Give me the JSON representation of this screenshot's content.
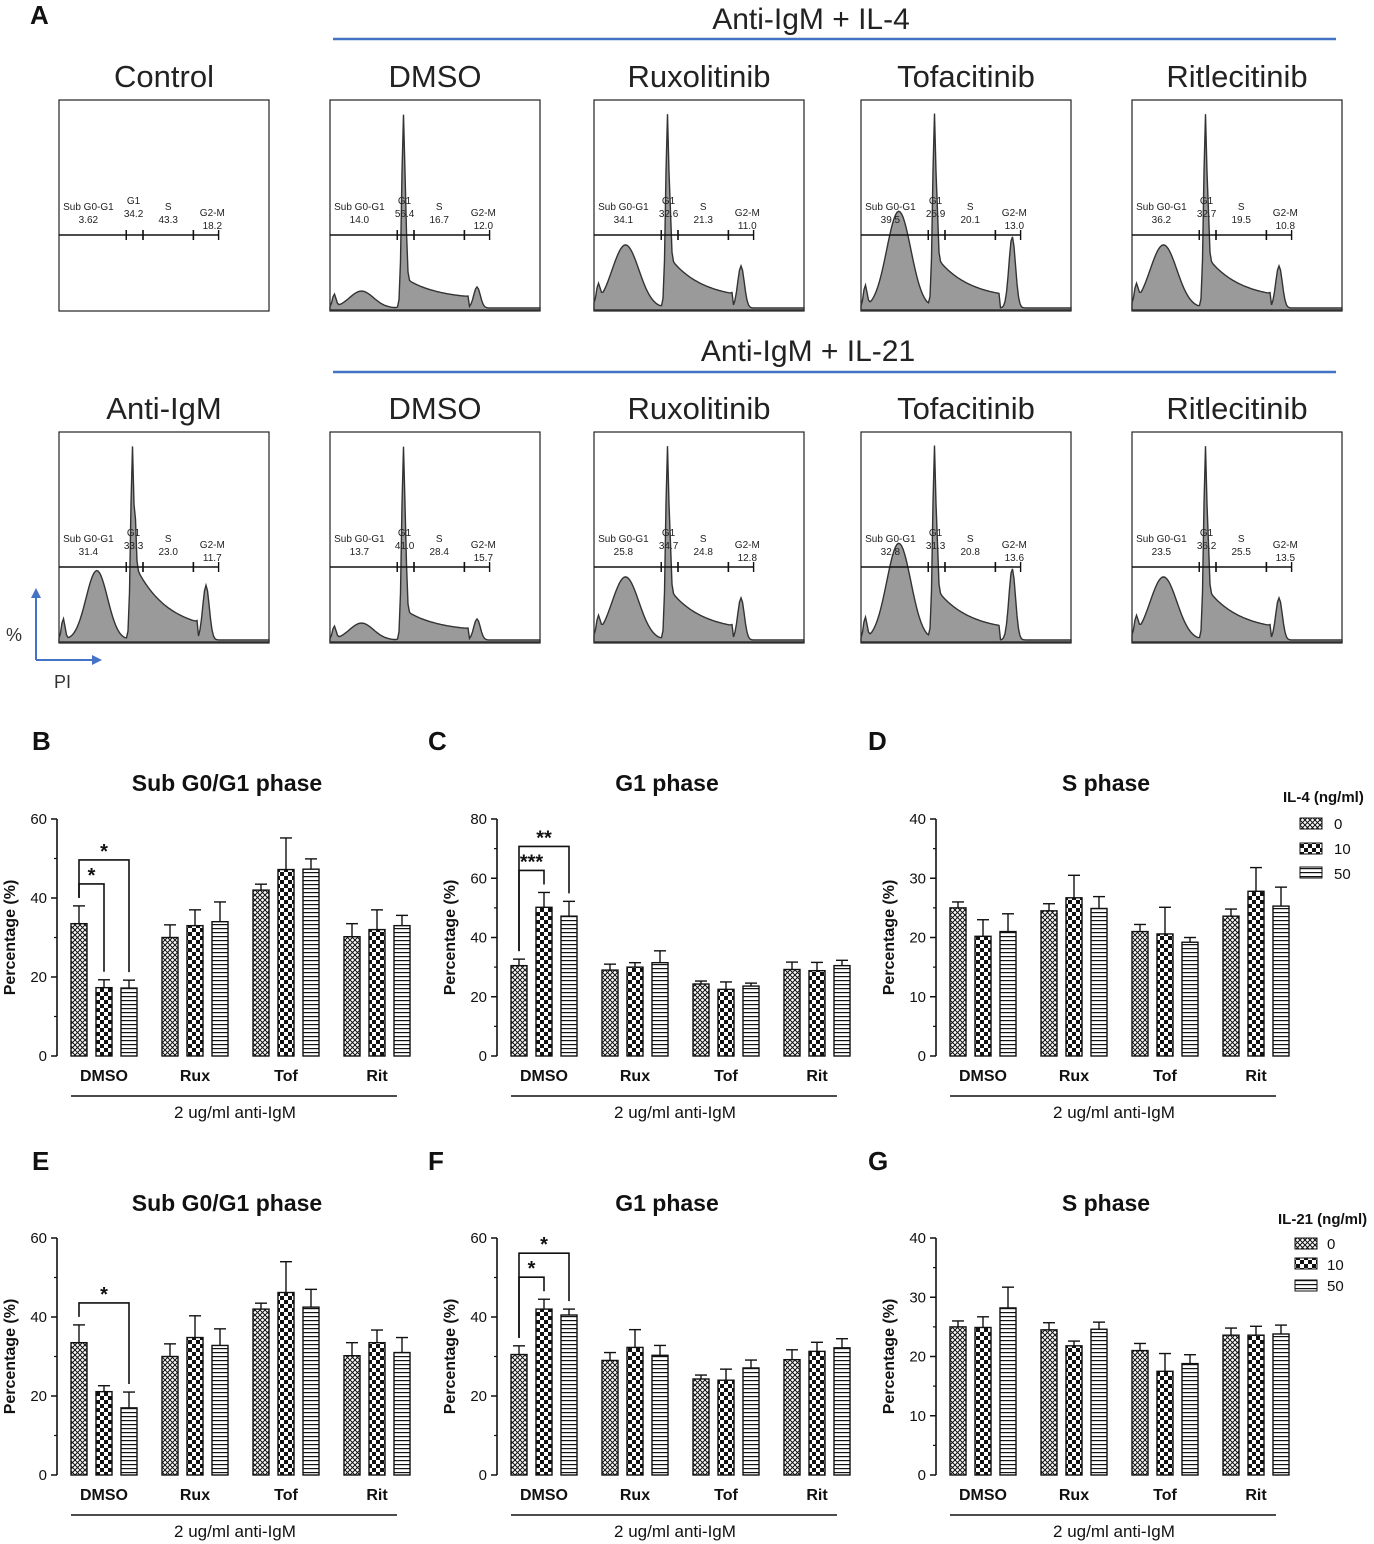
{
  "panel_a": {
    "letter": "A",
    "group_il4_title": "Anti-IgM + IL-4",
    "group_il21_title": "Anti-IgM + IL-21",
    "axis_y_note": "%",
    "axis_x_note": "PI",
    "gate_names": [
      "Sub G0-G1",
      "G1",
      "S",
      "G2-M"
    ],
    "rows": [
      [
        {
          "title": "Control",
          "values": [
            "3.62",
            "34.2",
            "43.3",
            "18.2"
          ],
          "pattern": "control"
        },
        {
          "title": "DMSO",
          "values": [
            "14.0",
            "56.4",
            "16.7",
            "12.0"
          ],
          "pattern": "dmso"
        },
        {
          "title": "Ruxolitinib",
          "values": [
            "34.1",
            "32.6",
            "21.3",
            "11.0"
          ],
          "pattern": "jak"
        },
        {
          "title": "Tofacitinib",
          "values": [
            "39.5",
            "25.9",
            "20.1",
            "13.0"
          ],
          "pattern": "jakbig"
        },
        {
          "title": "Ritlecitinib",
          "values": [
            "36.2",
            "32.7",
            "19.5",
            "10.8"
          ],
          "pattern": "jak"
        }
      ],
      [
        {
          "title": "Anti-IgM",
          "values": [
            "31.4",
            "33.3",
            "23.0",
            "11.7"
          ],
          "pattern": "anti"
        },
        {
          "title": "DMSO",
          "values": [
            "13.7",
            "41.0",
            "28.4",
            "15.7"
          ],
          "pattern": "dmso"
        },
        {
          "title": "Ruxolitinib",
          "values": [
            "25.8",
            "34.7",
            "24.8",
            "12.8"
          ],
          "pattern": "jak"
        },
        {
          "title": "Tofacitinib",
          "values": [
            "32.8",
            "31.3",
            "20.8",
            "13.6"
          ],
          "pattern": "jakbig"
        },
        {
          "title": "Ritlecitinib",
          "values": [
            "23.5",
            "36.2",
            "25.5",
            "13.5"
          ],
          "pattern": "jak"
        }
      ]
    ]
  },
  "legend_il4": {
    "title": "IL-4 (ng/ml)",
    "items": [
      "0",
      "10",
      "50"
    ]
  },
  "legend_il21": {
    "title": "IL-21 (ng/ml)",
    "items": [
      "0",
      "10",
      "50"
    ]
  },
  "chart_data": [
    {
      "panel": "B",
      "type": "bar",
      "title": "Sub G0/G1 phase",
      "ylabel": "Percentage (%)",
      "xlabel": "2 ug/ml anti-IgM",
      "categories": [
        "DMSO",
        "Rux",
        "Tof",
        "Rit"
      ],
      "ylim": [
        0,
        60
      ],
      "yticks": [
        0,
        20,
        40,
        60
      ],
      "series": [
        {
          "name": "0",
          "values": [
            33.5,
            30,
            42,
            30.2
          ],
          "errors": [
            4.5,
            3.2,
            1.5,
            3.3
          ]
        },
        {
          "name": "10",
          "values": [
            17.3,
            33,
            47.2,
            32
          ],
          "errors": [
            2,
            4,
            8,
            5
          ]
        },
        {
          "name": "50",
          "values": [
            17.2,
            34,
            47.3,
            33
          ],
          "errors": [
            2,
            5,
            2.6,
            2.6
          ]
        }
      ],
      "annotations": [
        {
          "from": 0,
          "to": 1,
          "category": 0,
          "label": "*"
        },
        {
          "from": 0,
          "to": 2,
          "category": 0,
          "label": "*"
        }
      ]
    },
    {
      "panel": "C",
      "type": "bar",
      "title": "G1 phase",
      "ylabel": "Percentage (%)",
      "xlabel": "2 ug/ml anti-IgM",
      "categories": [
        "DMSO",
        "Rux",
        "Tof",
        "Rit"
      ],
      "ylim": [
        0,
        80
      ],
      "yticks": [
        0,
        20,
        40,
        60,
        80
      ],
      "series": [
        {
          "name": "0",
          "values": [
            30.5,
            29,
            24.3,
            29.2
          ],
          "errors": [
            2.2,
            2,
            1,
            2.5
          ]
        },
        {
          "name": "10",
          "values": [
            50.2,
            30,
            22.5,
            28.8
          ],
          "errors": [
            5,
            1.5,
            2.5,
            2.8
          ]
        },
        {
          "name": "50",
          "values": [
            47.2,
            31.5,
            23.6,
            30.5
          ],
          "errors": [
            5,
            4,
            1,
            1.8
          ]
        }
      ],
      "annotations": [
        {
          "from": 0,
          "to": 1,
          "category": 0,
          "label": "***"
        },
        {
          "from": 0,
          "to": 2,
          "category": 0,
          "label": "**"
        }
      ]
    },
    {
      "panel": "D",
      "type": "bar",
      "title": "S phase",
      "ylabel": "Percentage (%)",
      "xlabel": "2 ug/ml anti-IgM",
      "categories": [
        "DMSO",
        "Rux",
        "Tof",
        "Rit"
      ],
      "ylim": [
        0,
        40
      ],
      "yticks": [
        0,
        10,
        20,
        30,
        40
      ],
      "series": [
        {
          "name": "0",
          "values": [
            25,
            24.5,
            21,
            23.6
          ],
          "errors": [
            1,
            1.2,
            1.2,
            1.2
          ]
        },
        {
          "name": "10",
          "values": [
            20.2,
            26.7,
            20.6,
            27.8
          ],
          "errors": [
            2.8,
            3.8,
            4.5,
            4
          ]
        },
        {
          "name": "50",
          "values": [
            21,
            24.9,
            19.2,
            25.3
          ],
          "errors": [
            3,
            2,
            0.8,
            3.2
          ]
        }
      ],
      "annotations": []
    },
    {
      "panel": "E",
      "type": "bar",
      "title": "Sub G0/G1 phase",
      "ylabel": "Percentage (%)",
      "xlabel": "2 ug/ml anti-IgM",
      "categories": [
        "DMSO",
        "Rux",
        "Tof",
        "Rit"
      ],
      "ylim": [
        0,
        60
      ],
      "yticks": [
        0,
        20,
        40,
        60
      ],
      "series": [
        {
          "name": "0",
          "values": [
            33.5,
            30,
            42,
            30.2
          ],
          "errors": [
            4.5,
            3.2,
            1.5,
            3.3
          ]
        },
        {
          "name": "10",
          "values": [
            21.1,
            34.8,
            46.2,
            33.5
          ],
          "errors": [
            1.5,
            5.5,
            7.8,
            3.2
          ]
        },
        {
          "name": "50",
          "values": [
            17,
            32.8,
            42.5,
            31
          ],
          "errors": [
            4,
            4.2,
            4.5,
            3.8
          ]
        }
      ],
      "annotations": [
        {
          "from": 0,
          "to": 2,
          "category": 0,
          "label": "*"
        }
      ]
    },
    {
      "panel": "F",
      "type": "bar",
      "title": "G1 phase",
      "ylabel": "Percentage (%)",
      "xlabel": "2 ug/ml anti-IgM",
      "categories": [
        "DMSO",
        "Rux",
        "Tof",
        "Rit"
      ],
      "ylim": [
        0,
        60
      ],
      "yticks": [
        0,
        20,
        40,
        60
      ],
      "series": [
        {
          "name": "0",
          "values": [
            30.5,
            29,
            24.3,
            29.2
          ],
          "errors": [
            2.2,
            2,
            1,
            2.5
          ]
        },
        {
          "name": "10",
          "values": [
            42,
            32.3,
            24,
            31.3
          ],
          "errors": [
            2.5,
            4.5,
            2.8,
            2.3
          ]
        },
        {
          "name": "50",
          "values": [
            40.5,
            30.3,
            27.1,
            32.2
          ],
          "errors": [
            1.5,
            2.5,
            2,
            2.3
          ]
        }
      ],
      "annotations": [
        {
          "from": 0,
          "to": 1,
          "category": 0,
          "label": "*"
        },
        {
          "from": 0,
          "to": 2,
          "category": 0,
          "label": "*"
        }
      ]
    },
    {
      "panel": "G",
      "type": "bar",
      "title": "S phase",
      "ylabel": "Percentage (%)",
      "xlabel": "2 ug/ml anti-IgM",
      "categories": [
        "DMSO",
        "Rux",
        "Tof",
        "Rit"
      ],
      "ylim": [
        0,
        40
      ],
      "yticks": [
        0,
        10,
        20,
        30,
        40
      ],
      "series": [
        {
          "name": "0",
          "values": [
            25,
            24.5,
            21,
            23.6
          ],
          "errors": [
            1,
            1.2,
            1.2,
            1.2
          ]
        },
        {
          "name": "10",
          "values": [
            24.9,
            21.8,
            17.5,
            23.6
          ],
          "errors": [
            1.8,
            0.8,
            3,
            1.5
          ]
        },
        {
          "name": "50",
          "values": [
            28.2,
            24.6,
            18.8,
            23.8
          ],
          "errors": [
            3.5,
            1.2,
            1.5,
            1.5
          ]
        }
      ],
      "annotations": []
    }
  ]
}
